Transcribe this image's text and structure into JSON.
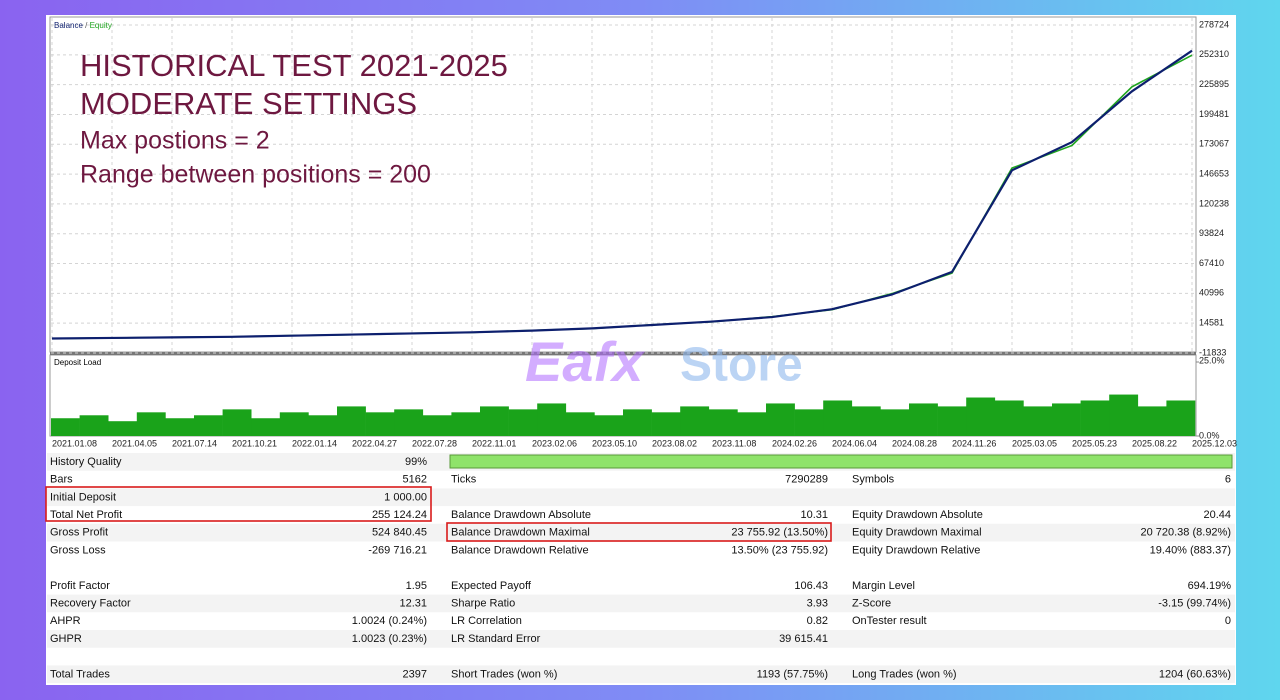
{
  "chart_data": [
    {
      "type": "line",
      "categories": [
        "2021.01.08",
        "2021.04.05",
        "2021.07.14",
        "2021.10.21",
        "2022.01.14",
        "2022.04.27",
        "2022.07.28",
        "2022.11.01",
        "2023.02.06",
        "2023.05.10",
        "2023.08.02",
        "2023.11.08",
        "2024.02.26",
        "2024.06.04",
        "2024.08.28",
        "2024.11.26",
        "2025.03.05",
        "2025.05.23",
        "2025.08.22",
        "2025.12.03"
      ],
      "series": [
        {
          "name": "Balance",
          "color": "#0d1f6e",
          "values": [
            1000,
            1500,
            2000,
            2500,
            3500,
            4500,
            5500,
            6500,
            8000,
            10000,
            13000,
            16000,
            20000,
            27000,
            40000,
            60000,
            150000,
            175000,
            220000,
            256000
          ]
        },
        {
          "name": "Equity",
          "color": "#1fa51f",
          "values": [
            1000,
            1500,
            2100,
            2500,
            3600,
            4400,
            5600,
            6400,
            8200,
            9800,
            13200,
            15800,
            20400,
            26500,
            40800,
            59000,
            152000,
            172000,
            224000,
            252000
          ]
        }
      ],
      "ylim": [
        -11833,
        278724
      ],
      "yticks": [
        278724,
        252310,
        225895,
        199481,
        173067,
        146653,
        120238,
        93824,
        67410,
        40996,
        14581,
        -11833
      ],
      "grid": true,
      "annotations": [
        "HISTORICAL TEST 2021-2025",
        "MODERATE SETTINGS",
        "Max postions = 2",
        "Range between positions = 200"
      ]
    },
    {
      "type": "bar",
      "title": "Deposit Load",
      "color": "#1aa31a",
      "values": [
        6,
        7,
        5,
        8,
        6,
        7,
        9,
        6,
        8,
        7,
        10,
        8,
        9,
        7,
        8,
        10,
        9,
        11,
        8,
        7,
        9,
        8,
        10,
        9,
        8,
        11,
        9,
        12,
        10,
        9,
        11,
        10,
        13,
        12,
        10,
        11,
        12,
        14,
        10,
        12
      ],
      "ylim": [
        0,
        25
      ],
      "yticks": [
        {
          "value": 25,
          "label": "25.0%"
        },
        {
          "value": 0,
          "label": "0.0%"
        }
      ]
    }
  ],
  "watermark": [
    "Eafx",
    "Store"
  ],
  "report": {
    "rows": [
      [
        "History Quality",
        "99%"
      ],
      [
        "Bars",
        "5162",
        "Ticks",
        "7290289",
        "Symbols",
        "6"
      ],
      [
        "Initial Deposit",
        "1 000.00"
      ],
      [
        "Total Net Profit",
        "255 124.24",
        "Balance Drawdown Absolute",
        "10.31",
        "Equity Drawdown Absolute",
        "20.44"
      ],
      [
        "Gross Profit",
        "524 840.45",
        "Balance Drawdown Maximal",
        "23 755.92 (13.50%)",
        "Equity Drawdown Maximal",
        "20 720.38 (8.92%)"
      ],
      [
        "Gross Loss",
        "-269 716.21",
        "Balance Drawdown Relative",
        "13.50% (23 755.92)",
        "Equity Drawdown Relative",
        "19.40% (883.37)"
      ],
      [],
      [
        "Profit Factor",
        "1.95",
        "Expected Payoff",
        "106.43",
        "Margin Level",
        "694.19%"
      ],
      [
        "Recovery Factor",
        "12.31",
        "Sharpe Ratio",
        "3.93",
        "Z-Score",
        "-3.15 (99.74%)"
      ],
      [
        "AHPR",
        "1.0024 (0.24%)",
        "LR Correlation",
        "0.82",
        "OnTester result",
        "0"
      ],
      [
        "GHPR",
        "1.0023 (0.23%)",
        "LR Standard Error",
        "39 615.41"
      ],
      [],
      [
        "Total Trades",
        "2397",
        "Short Trades (won %)",
        "1193 (57.75%)",
        "Long Trades (won %)",
        "1204 (60.63%)"
      ]
    ]
  }
}
